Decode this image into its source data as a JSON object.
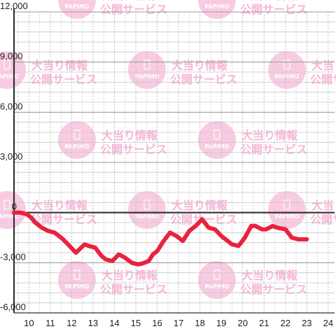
{
  "watermark": {
    "brand": "PAPIMO",
    "line1": "大当り情報",
    "line2": "公開サービス",
    "color": "#f7b5d6"
  },
  "chart_data": {
    "type": "line",
    "title": "",
    "xlabel": "",
    "ylabel": "",
    "xlim": [
      9.3,
      24.3
    ],
    "ylim": [
      -6000,
      12000
    ],
    "x_ticks": [
      10,
      11,
      12,
      13,
      14,
      15,
      16,
      17,
      18,
      19,
      20,
      21,
      22,
      23,
      24
    ],
    "y_ticks": [
      12000,
      9000,
      6000,
      3000,
      0,
      -3000,
      -6000
    ],
    "y_tick_labels": [
      "12,000",
      "9,000",
      "6,000",
      "3,000",
      "0",
      "-3,000",
      "-6,000"
    ],
    "grid": true,
    "line_color": "#e8233f",
    "series": [
      {
        "x": [
          9.3,
          9.6,
          9.9,
          10.1,
          10.3,
          10.6,
          10.9,
          11.2,
          11.6,
          11.9,
          12.2,
          12.6,
          12.8,
          13.1,
          13.4,
          13.6,
          13.9,
          14.2,
          14.5,
          14.8,
          15.1,
          15.3,
          15.6,
          15.8,
          16.0,
          16.3,
          16.6,
          16.9,
          17.2,
          17.5,
          17.8,
          18.1,
          18.4,
          18.7,
          19.0,
          19.3,
          19.5,
          19.8,
          20.1,
          20.4,
          20.6,
          20.9,
          21.1,
          21.4,
          21.6,
          22.0,
          22.3,
          22.6,
          23.0
        ],
        "y": [
          0,
          0,
          -100,
          -300,
          -600,
          -900,
          -1100,
          -1200,
          -1600,
          -2000,
          -2400,
          -1900,
          -2000,
          -2100,
          -2600,
          -2800,
          -2900,
          -2500,
          -2700,
          -3000,
          -3100,
          -3050,
          -2900,
          -2500,
          -2300,
          -1700,
          -1200,
          -1400,
          -1700,
          -1100,
          -800,
          -400,
          -900,
          -1000,
          -1400,
          -1700,
          -1900,
          -2000,
          -1500,
          -800,
          -800,
          -1000,
          -1000,
          -800,
          -900,
          -1000,
          -1500,
          -1600,
          -1600
        ]
      }
    ]
  }
}
